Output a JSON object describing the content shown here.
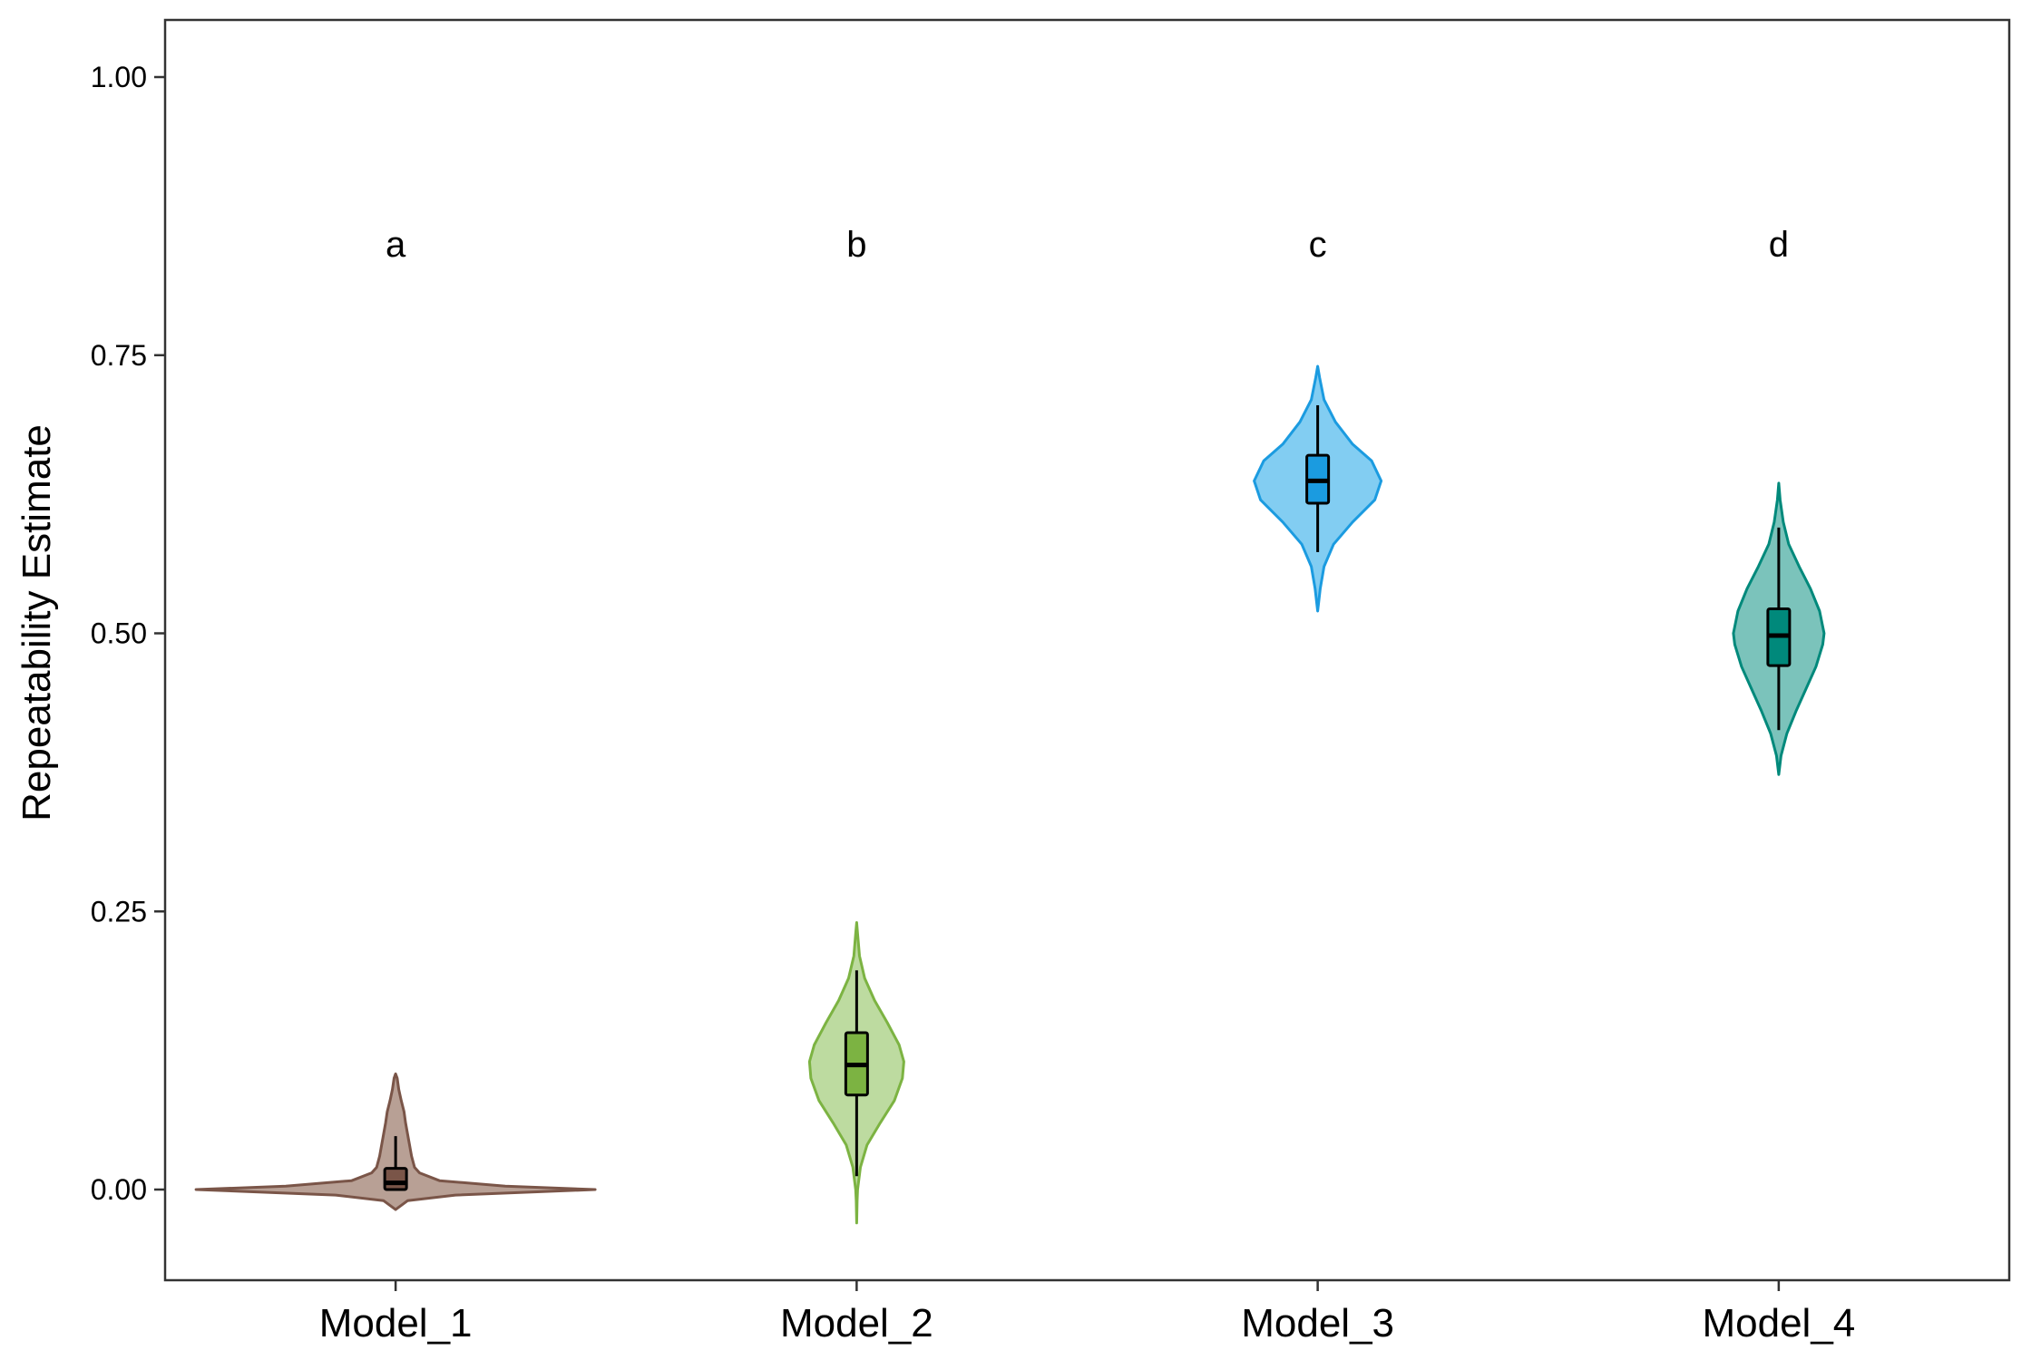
{
  "chart_data": {
    "type": "violin",
    "title": "",
    "xlabel": "",
    "ylabel": "Repeatability Estimate",
    "ylim": [
      -0.08,
      1.05
    ],
    "yticks": [
      0.0,
      0.25,
      0.5,
      0.75,
      1.0
    ],
    "ytick_labels": [
      "0.00",
      "0.25",
      "0.50",
      "0.75",
      "1.00"
    ],
    "grid": false,
    "legend": "none",
    "categories": [
      "Model_1",
      "Model_2",
      "Model_3",
      "Model_4"
    ],
    "annotations": [
      "a",
      "b",
      "c",
      "d"
    ],
    "annotation_y": 0.85,
    "series": [
      {
        "category": "Model_1",
        "fill": "#b8a095",
        "outline": "#7a5548",
        "box_fill": "#7a5548",
        "box": {
          "whisker_low": 0.0,
          "q1": 0.0,
          "median": 0.006,
          "q3": 0.019,
          "whisker_high": 0.048
        },
        "density": [
          [
            -0.018,
            0.0
          ],
          [
            -0.01,
            0.06
          ],
          [
            -0.005,
            0.3
          ],
          [
            0.0,
            1.0
          ],
          [
            0.003,
            0.55
          ],
          [
            0.008,
            0.22
          ],
          [
            0.015,
            0.12
          ],
          [
            0.02,
            0.095
          ],
          [
            0.03,
            0.08
          ],
          [
            0.04,
            0.07
          ],
          [
            0.05,
            0.06
          ],
          [
            0.06,
            0.05
          ],
          [
            0.07,
            0.042
          ],
          [
            0.08,
            0.028
          ],
          [
            0.09,
            0.016
          ],
          [
            0.1,
            0.008
          ],
          [
            0.104,
            0.0
          ]
        ]
      },
      {
        "category": "Model_2",
        "fill": "#bddba0",
        "outline": "#7cb342",
        "box_fill": "#7cb342",
        "box": {
          "whisker_low": 0.012,
          "q1": 0.085,
          "median": 0.112,
          "q3": 0.141,
          "whisker_high": 0.197
        },
        "density": [
          [
            -0.03,
            0.0
          ],
          [
            -0.01,
            0.01
          ],
          [
            0.0,
            0.02
          ],
          [
            0.02,
            0.08
          ],
          [
            0.04,
            0.22
          ],
          [
            0.06,
            0.5
          ],
          [
            0.08,
            0.8
          ],
          [
            0.1,
            0.97
          ],
          [
            0.115,
            1.0
          ],
          [
            0.13,
            0.9
          ],
          [
            0.15,
            0.65
          ],
          [
            0.17,
            0.38
          ],
          [
            0.19,
            0.17
          ],
          [
            0.21,
            0.06
          ],
          [
            0.23,
            0.02
          ],
          [
            0.24,
            0.0
          ]
        ]
      },
      {
        "category": "Model_3",
        "fill": "#82cdf2",
        "outline": "#1b9be0",
        "box_fill": "#1b9be0",
        "box": {
          "whisker_low": 0.573,
          "q1": 0.617,
          "median": 0.637,
          "q3": 0.66,
          "whisker_high": 0.705
        },
        "density": [
          [
            0.52,
            0.0
          ],
          [
            0.54,
            0.04
          ],
          [
            0.56,
            0.1
          ],
          [
            0.58,
            0.25
          ],
          [
            0.6,
            0.55
          ],
          [
            0.62,
            0.9
          ],
          [
            0.637,
            1.0
          ],
          [
            0.655,
            0.85
          ],
          [
            0.67,
            0.55
          ],
          [
            0.69,
            0.28
          ],
          [
            0.71,
            0.1
          ],
          [
            0.73,
            0.03
          ],
          [
            0.74,
            0.0
          ]
        ]
      },
      {
        "category": "Model_4",
        "fill": "#7bc3bb",
        "outline": "#00897b",
        "box_fill": "#00897b",
        "box": {
          "whisker_low": 0.413,
          "q1": 0.471,
          "median": 0.498,
          "q3": 0.522,
          "whisker_high": 0.595
        },
        "density": [
          [
            0.373,
            0.0
          ],
          [
            0.39,
            0.05
          ],
          [
            0.41,
            0.18
          ],
          [
            0.43,
            0.38
          ],
          [
            0.45,
            0.6
          ],
          [
            0.47,
            0.82
          ],
          [
            0.49,
            0.97
          ],
          [
            0.5,
            1.0
          ],
          [
            0.52,
            0.9
          ],
          [
            0.54,
            0.7
          ],
          [
            0.56,
            0.45
          ],
          [
            0.58,
            0.22
          ],
          [
            0.6,
            0.1
          ],
          [
            0.62,
            0.03
          ],
          [
            0.635,
            0.0
          ]
        ]
      }
    ]
  }
}
